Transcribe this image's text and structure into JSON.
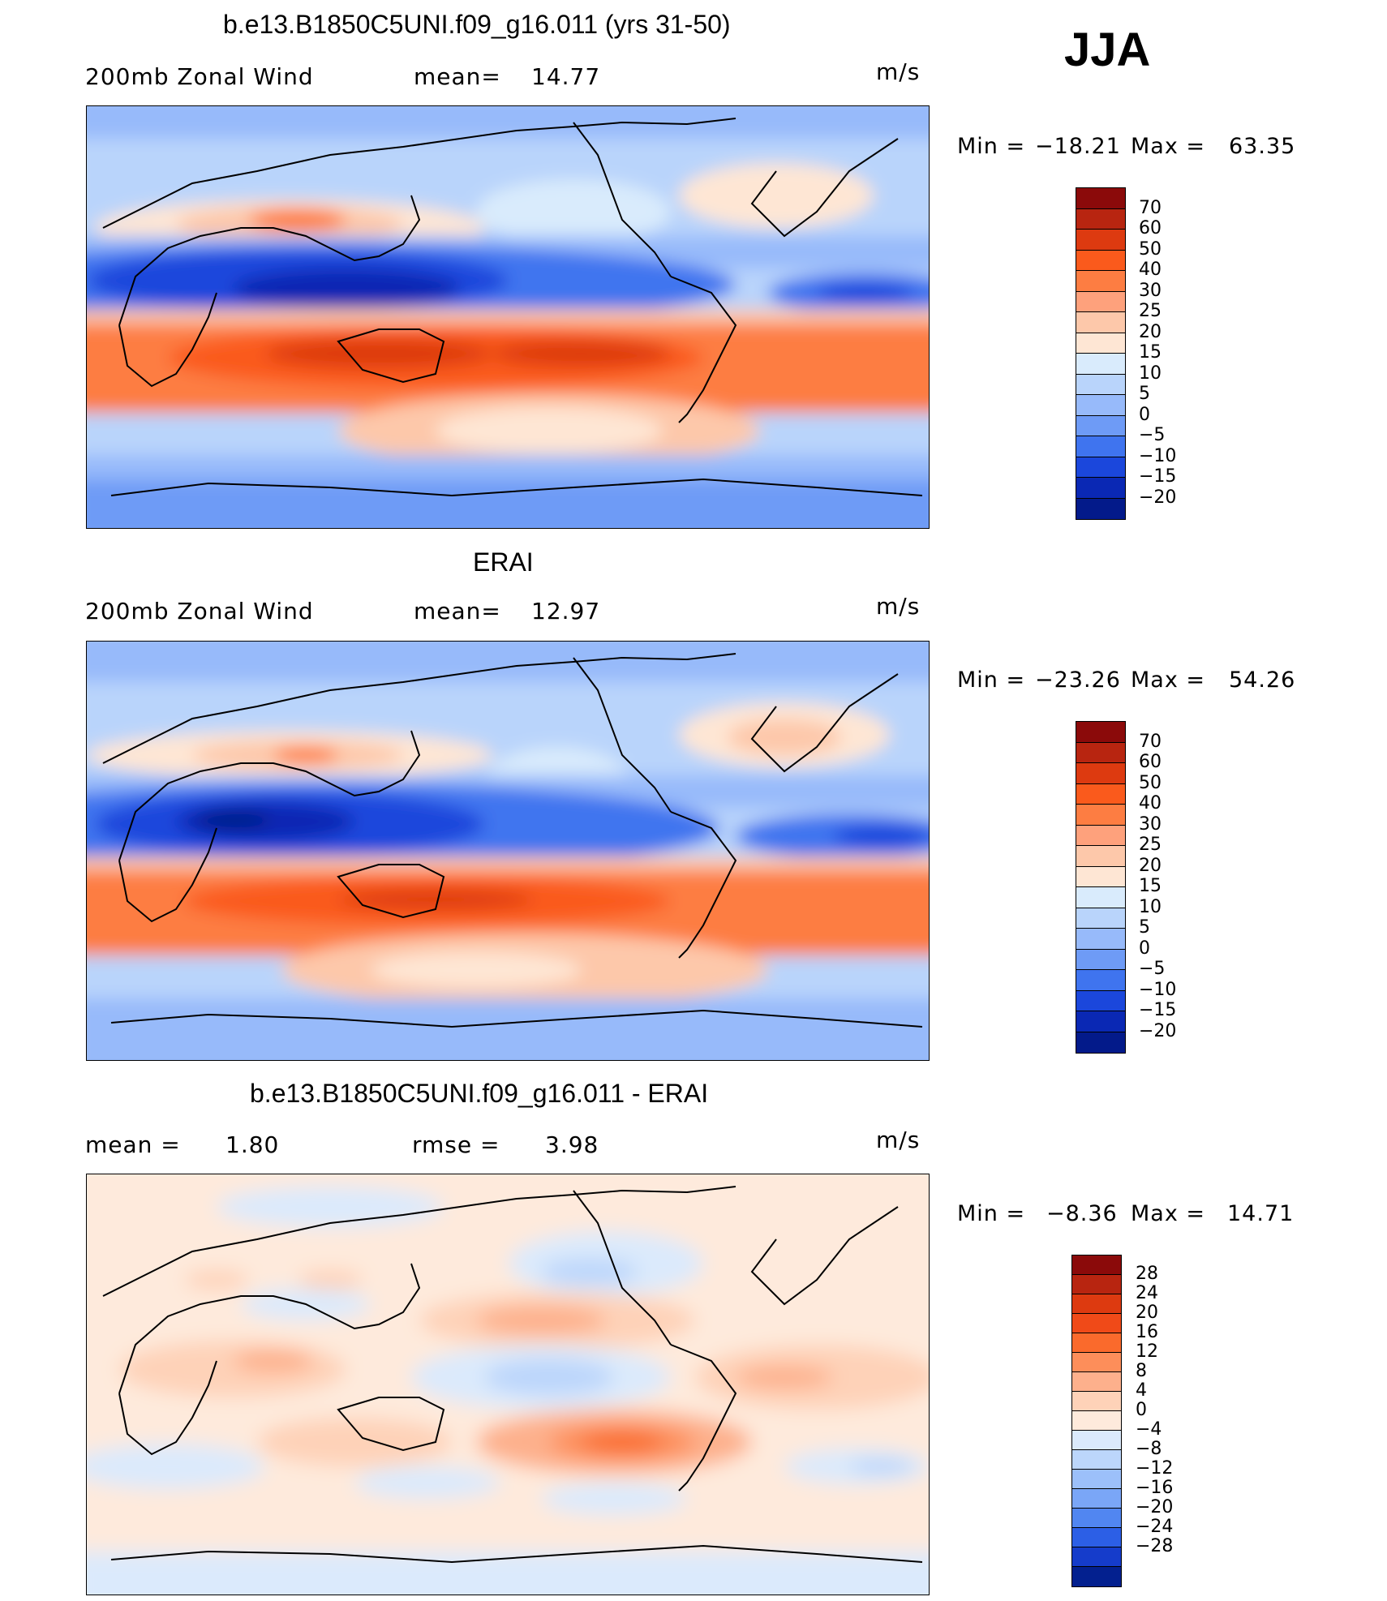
{
  "season": "JJA",
  "panels": [
    {
      "title": "b.e13.B1850C5UNI.f09_g16.011 (yrs 31-50)",
      "left_text": "200mb Zonal Wind",
      "mid_label": "mean=",
      "mid_value": "14.77",
      "right_label": "",
      "right_value": "",
      "units": "m/s",
      "min_label": "Min =",
      "min_value": "−18.21",
      "max_label": "Max =",
      "max_value": "63.35",
      "colorbar_ticks": [
        "70",
        "60",
        "50",
        "40",
        "30",
        "25",
        "20",
        "15",
        "10",
        "5",
        "0",
        "−5",
        "−10",
        "−15",
        "−20"
      ]
    },
    {
      "title": "ERAI",
      "left_text": "200mb Zonal Wind",
      "mid_label": "mean=",
      "mid_value": "12.97",
      "right_label": "",
      "right_value": "",
      "units": "m/s",
      "min_label": "Min =",
      "min_value": "−23.26",
      "max_label": "Max =",
      "max_value": "54.26",
      "colorbar_ticks": [
        "70",
        "60",
        "50",
        "40",
        "30",
        "25",
        "20",
        "15",
        "10",
        "5",
        "0",
        "−5",
        "−10",
        "−15",
        "−20"
      ]
    },
    {
      "title": "b.e13.B1850C5UNI.f09_g16.011 - ERAI",
      "left_text": "mean =",
      "left_value": "1.80",
      "mid_label": "rmse =",
      "mid_value": "3.98",
      "units": "m/s",
      "min_label": "Min =",
      "min_value": "−8.36",
      "max_label": "Max =",
      "max_value": "14.71",
      "colorbar_ticks": [
        "28",
        "24",
        "20",
        "16",
        "12",
        "8",
        "4",
        "0",
        "−4",
        "−8",
        "−12",
        "−16",
        "−20",
        "−24",
        "−28"
      ]
    }
  ],
  "colors": {
    "abs_scale": [
      "#8b0a0a",
      "#b82510",
      "#dd3a10",
      "#fa5a1c",
      "#fd7d42",
      "#fea17c",
      "#fdc8aa",
      "#fee6d4",
      "#d9ebfc",
      "#b9d4fb",
      "#97bafa",
      "#6e9bf6",
      "#3f74ef",
      "#1b47dc",
      "#0a28b4",
      "#031a8a"
    ],
    "diff_scale": [
      "#8b0a0a",
      "#b82510",
      "#dd3a10",
      "#f04a18",
      "#fa6a2c",
      "#fd8e5a",
      "#fdb08c",
      "#fed2b8",
      "#feeadc",
      "#dbeafc",
      "#bcd6fb",
      "#9cc0fa",
      "#7aa6f7",
      "#5186f1",
      "#2c5fe6",
      "#153ccb",
      "#03208f"
    ]
  }
}
